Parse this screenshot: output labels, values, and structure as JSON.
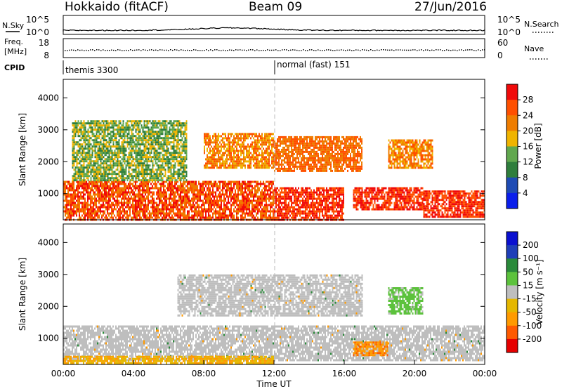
{
  "header": {
    "station": "Hokkaido (fitACF)",
    "beam": "Beam 09",
    "date": "27/Jun/2016"
  },
  "noise_panel": {
    "left_label": "N.Sky",
    "right_label": "N.Search",
    "left_ticks": [
      "10^5",
      "10^0"
    ],
    "right_ticks": [
      "10^5",
      "10^0"
    ]
  },
  "freq_panel": {
    "left_label_1": "Freq.",
    "left_label_2": "[MHz]",
    "left_ticks": [
      "18",
      "8"
    ],
    "right_label": "Nave",
    "right_ticks": [
      "60",
      "0"
    ]
  },
  "cpid_panel": {
    "label": "CPID",
    "mode_1": "themis 3300",
    "mode_2": "normal (fast) 151"
  },
  "colors": {
    "power": [
      "#0a1eeb",
      "#1e4bb4",
      "#2f7e3c",
      "#61a84e",
      "#f0b400",
      "#ef7d00",
      "#ff5000",
      "#f00a0a"
    ],
    "velocity": [
      "#e60000",
      "#ff5a00",
      "#ff9a00",
      "#e5b700",
      "#bebebe",
      "#5cc23c",
      "#2a8a3a",
      "#1f3fb8",
      "#0a10d0"
    ]
  },
  "chart_data": [
    {
      "type": "heatmap",
      "parameter": "Power",
      "ylabel": "Slant Range [km]",
      "xlabel": "",
      "ylim": [
        180,
        4580
      ],
      "xlim": [
        "00:00",
        "24:00"
      ],
      "y_ticks": [
        "1000",
        "2000",
        "3000",
        "4000"
      ],
      "colorbar": {
        "label": "Power [dB]",
        "ticks": [
          "4",
          "8",
          "12",
          "16",
          "20",
          "24",
          "28"
        ],
        "range": [
          0,
          32
        ]
      },
      "echo_regions": [
        {
          "t_start": 0.0,
          "t_end": 12.0,
          "range_km": [
            200,
            1400
          ],
          "power_db": "20-32"
        },
        {
          "t_start": 0.5,
          "t_end": 7.0,
          "range_km": [
            1400,
            3300
          ],
          "power_db": "8-20"
        },
        {
          "t_start": 8.0,
          "t_end": 12.0,
          "range_km": [
            1800,
            2900
          ],
          "power_db": "16-28"
        },
        {
          "t_start": 12.0,
          "t_end": 16.0,
          "range_km": [
            200,
            1200
          ],
          "power_db": "24-32"
        },
        {
          "t_start": 12.0,
          "t_end": 17.0,
          "range_km": [
            1700,
            2800
          ],
          "power_db": "20-28"
        },
        {
          "t_start": 16.5,
          "t_end": 20.5,
          "range_km": [
            500,
            1200
          ],
          "power_db": "24-32"
        },
        {
          "t_start": 18.5,
          "t_end": 21.0,
          "range_km": [
            1800,
            2700
          ],
          "power_db": "16-28"
        },
        {
          "t_start": 20.5,
          "t_end": 24.0,
          "range_km": [
            300,
            1100
          ],
          "power_db": "24-32"
        }
      ]
    },
    {
      "type": "heatmap",
      "parameter": "Velocity",
      "ylabel": "Slant Range [km]",
      "xlabel": "Time UT",
      "ylim": [
        180,
        4580
      ],
      "xlim": [
        "00:00",
        "24:00"
      ],
      "x_ticks": [
        "00:00",
        "04:00",
        "08:00",
        "12:00",
        "16:00",
        "20:00",
        "00:00"
      ],
      "y_ticks": [
        "1000",
        "2000",
        "3000",
        "4000"
      ],
      "colorbar": {
        "label": "Velocity [m s⁻¹]",
        "ticks": [
          "200",
          "100",
          "50",
          "15",
          "-15",
          "-50",
          "-100",
          "-200"
        ],
        "range": [
          -250,
          250
        ]
      },
      "echo_regions": [
        {
          "t_start": 0.0,
          "t_end": 24.0,
          "range_km": [
            300,
            1400
          ],
          "velocity": "-15 to 15"
        },
        {
          "t_start": 0.0,
          "t_end": 12.0,
          "range_km": [
            200,
            450
          ],
          "velocity": "-100 to -15"
        },
        {
          "t_start": 16.5,
          "t_end": 18.5,
          "range_km": [
            500,
            900
          ],
          "velocity": "-100 to -50"
        },
        {
          "t_start": 6.5,
          "t_end": 17.0,
          "range_km": [
            1700,
            3000
          ],
          "velocity": "-15 to 15"
        },
        {
          "t_start": 18.5,
          "t_end": 20.5,
          "range_km": [
            1800,
            2600
          ],
          "velocity": "15 to 50"
        }
      ]
    }
  ]
}
